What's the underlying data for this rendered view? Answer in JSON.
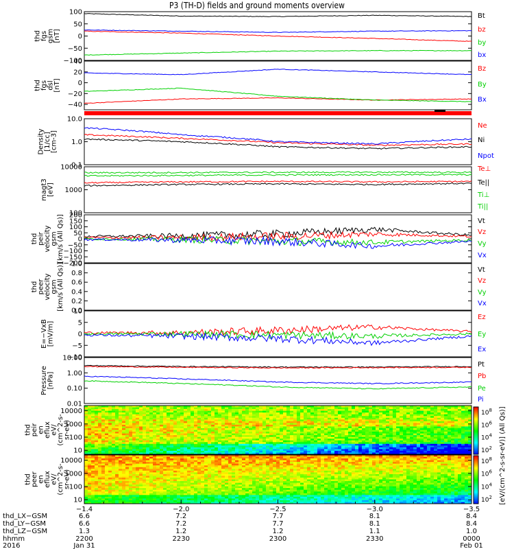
{
  "title": "P3 (TH-D) fields and ground moments overview",
  "colors": {
    "black": "#000000",
    "red": "#ff0000",
    "green": "#00d000",
    "blue": "#0000ff"
  },
  "panels": [
    {
      "id": "fgs_gsm",
      "type": "line",
      "ylabel_lines": [
        "thd",
        "fgs",
        "gsm",
        "[nT]"
      ],
      "yticks": [
        {
          "v": 100,
          "t": "100"
        },
        {
          "v": 50,
          "t": "50"
        },
        {
          "v": 0,
          "t": "0"
        },
        {
          "v": -50,
          "t": "−50"
        },
        {
          "v": -100,
          "t": "−100"
        }
      ],
      "ylim": [
        -100,
        100
      ],
      "log": false,
      "legend": [
        {
          "text": "Bt",
          "color": "black"
        },
        {
          "text": "bz",
          "color": "red"
        },
        {
          "text": "by",
          "color": "green"
        },
        {
          "text": "bx",
          "color": "blue"
        }
      ]
    },
    {
      "id": "fgs_dsl",
      "type": "line",
      "ylabel_lines": [
        "thd",
        "fgs",
        "dsl",
        "[nT]"
      ],
      "yticks": [
        {
          "v": 40,
          "t": "40"
        },
        {
          "v": 20,
          "t": "20"
        },
        {
          "v": 0,
          "t": "0"
        },
        {
          "v": -20,
          "t": "−20"
        },
        {
          "v": -40,
          "t": "−40"
        }
      ],
      "ylim": [
        -50,
        40
      ],
      "log": false,
      "legend": [
        {
          "text": "Bz",
          "color": "red"
        },
        {
          "text": "By",
          "color": "green"
        },
        {
          "text": "Bx",
          "color": "blue"
        }
      ]
    },
    {
      "id": "density",
      "type": "line",
      "ylabel_lines": [
        "Density",
        "[1/cc]",
        "[cm-3]"
      ],
      "yticks": [
        {
          "v": 10,
          "t": "10.0"
        },
        {
          "v": 1,
          "t": "1.0"
        },
        {
          "v": 0.1,
          "t": "0.1"
        }
      ],
      "ylim": [
        0.1,
        10
      ],
      "log": true,
      "legend": [
        {
          "text": "Ne",
          "color": "red"
        },
        {
          "text": "Ni",
          "color": "black"
        },
        {
          "text": "Npot",
          "color": "blue"
        }
      ]
    },
    {
      "id": "temperature",
      "type": "line",
      "ylabel_lines": [
        "magt3",
        "[eV]"
      ],
      "yticks": [
        {
          "v": 10000,
          "t": "10000"
        },
        {
          "v": 1000,
          "t": "1000"
        },
        {
          "v": 100,
          "t": "100"
        }
      ],
      "ylim": [
        100,
        10000
      ],
      "log": true,
      "legend": [
        {
          "text": "Te⊥",
          "color": "red"
        },
        {
          "text": "Te||",
          "color": "black"
        },
        {
          "text": "Ti⊥",
          "color": "green"
        },
        {
          "text": "Ti||",
          "color": "green"
        }
      ]
    },
    {
      "id": "ion_velocity",
      "type": "line",
      "ylabel_lines": [
        "thd",
        "peir",
        "velocity",
        "gsm",
        "[km/s (All Qs)]"
      ],
      "yticks": [
        {
          "v": 200,
          "t": "200"
        },
        {
          "v": 150,
          "t": "150"
        },
        {
          "v": 100,
          "t": "100"
        },
        {
          "v": 50,
          "t": "50"
        },
        {
          "v": 0,
          "t": "0"
        },
        {
          "v": -50,
          "t": "−50"
        },
        {
          "v": -100,
          "t": "−100"
        },
        {
          "v": -150,
          "t": "−150"
        },
        {
          "v": -200,
          "t": "−200"
        }
      ],
      "ylim": [
        -200,
        200
      ],
      "log": false,
      "legend": [
        {
          "text": "Vt",
          "color": "black"
        },
        {
          "text": "Vz",
          "color": "red"
        },
        {
          "text": "Vy",
          "color": "green"
        },
        {
          "text": "Vx",
          "color": "blue"
        }
      ]
    },
    {
      "id": "electron_velocity",
      "type": "line",
      "ylabel_lines": [
        "thd",
        "peer",
        "velocity",
        "gsm",
        "[km/s (All Qs)]"
      ],
      "yticks": [
        {
          "v": 1.0,
          "t": "1.0"
        },
        {
          "v": 0.8,
          "t": "0.8"
        },
        {
          "v": 0.6,
          "t": "0.6"
        },
        {
          "v": 0.4,
          "t": "0.4"
        },
        {
          "v": 0.2,
          "t": "0.2"
        },
        {
          "v": 0.0,
          "t": "0.0"
        }
      ],
      "ylim": [
        0,
        1
      ],
      "log": false,
      "legend": [
        {
          "text": "Vt",
          "color": "black"
        },
        {
          "text": "Vz",
          "color": "red"
        },
        {
          "text": "Vy",
          "color": "green"
        },
        {
          "text": "Vx",
          "color": "blue"
        }
      ]
    },
    {
      "id": "efield",
      "type": "line",
      "ylabel_lines": [
        "E=−VxB",
        "[mV/m]"
      ],
      "yticks": [
        {
          "v": 10,
          "t": "10"
        },
        {
          "v": 5,
          "t": "5"
        },
        {
          "v": 0,
          "t": "0"
        },
        {
          "v": -5,
          "t": "−5"
        },
        {
          "v": -10,
          "t": "−10"
        }
      ],
      "ylim": [
        -10,
        10
      ],
      "log": false,
      "legend": [
        {
          "text": "Ez",
          "color": "red"
        },
        {
          "text": "Ey",
          "color": "green"
        },
        {
          "text": "Ex",
          "color": "blue"
        }
      ]
    },
    {
      "id": "pressure",
      "type": "line",
      "ylabel_lines": [
        "Pressure",
        "[nPa]"
      ],
      "yticks": [
        {
          "v": 10,
          "t": "10.00"
        },
        {
          "v": 1,
          "t": "1.00"
        },
        {
          "v": 0.1,
          "t": "0.10"
        },
        {
          "v": 0.01,
          "t": "0.01"
        }
      ],
      "ylim": [
        0.01,
        10
      ],
      "log": true,
      "legend": [
        {
          "text": "Pt",
          "color": "black"
        },
        {
          "text": "Pb",
          "color": "red"
        },
        {
          "text": "Pe",
          "color": "green"
        },
        {
          "text": "Pi",
          "color": "blue"
        }
      ]
    },
    {
      "id": "ion_eflux",
      "type": "spectrogram",
      "ylabel_lines": [
        "thd",
        "peir",
        "en",
        "eflux",
        "eV/",
        "(cm^2-s-",
        "sr-eV)"
      ],
      "yticks": [
        {
          "v": 10000,
          "t": "10000"
        },
        {
          "v": 1000,
          "t": "1000"
        },
        {
          "v": 100,
          "t": "100"
        },
        {
          "v": 10,
          "t": "10"
        }
      ],
      "ylim": [
        5,
        25000
      ],
      "log": true,
      "legend": []
    },
    {
      "id": "electron_eflux",
      "type": "spectrogram",
      "ylabel_lines": [
        "thd",
        "peer",
        "en",
        "eflux",
        "eV/",
        "(cm^2-s-",
        "sr-eV)"
      ],
      "yticks": [
        {
          "v": 10000,
          "t": "10000"
        },
        {
          "v": 1000,
          "t": "1000"
        },
        {
          "v": 100,
          "t": "100"
        },
        {
          "v": 10,
          "t": "10"
        }
      ],
      "ylim": [
        5,
        25000
      ],
      "log": true,
      "legend": []
    }
  ],
  "colorbar": {
    "label": "[eV/(cm^2-s-sr-eV)] (All Qs)]",
    "label_overlay": "[eV/(cm^2-s-sr-eV)]",
    "ion_ticks": [
      "10^8",
      "10^6",
      "10^4",
      "10^2"
    ],
    "electron_ticks": [
      "10^8",
      "10^6",
      "10^4",
      "10^2"
    ]
  },
  "xaxis": {
    "ticks_x": [
      "−1.4",
      "−2.0",
      "−2.5",
      "−3.0",
      "−3.5"
    ],
    "rows": [
      {
        "label": "thd_LX−GSM",
        "values": [
          "6.6",
          "7.2",
          "7.7",
          "8.1",
          "8.4"
        ]
      },
      {
        "label": "thd_LY−GSM",
        "values": [
          "6.6",
          "7.2",
          "7.7",
          "8.1",
          "8.4"
        ]
      },
      {
        "label": "thd_LZ−GSM",
        "values": [
          "1.3",
          "1.2",
          "1.2",
          "1.1",
          "1.0"
        ]
      },
      {
        "label": "hhmm",
        "values": [
          "2200",
          "2230",
          "2300",
          "2330",
          "0000"
        ]
      },
      {
        "label": "2016",
        "values": [
          "Jan 31",
          "",
          "",
          "",
          "Feb 01"
        ]
      }
    ]
  },
  "chart_data": [
    {
      "type": "line",
      "id": "fgs_gsm",
      "x": [
        "2200",
        "2230",
        "2300",
        "2330",
        "0000"
      ],
      "series": [
        {
          "name": "Bt",
          "values": [
            92,
            82,
            80,
            85,
            80
          ]
        },
        {
          "name": "bz",
          "values": [
            20,
            12,
            0,
            -10,
            -22
          ]
        },
        {
          "name": "by",
          "values": [
            -78,
            -70,
            -62,
            -60,
            -60
          ]
        },
        {
          "name": "bx",
          "values": [
            25,
            20,
            15,
            20,
            22
          ]
        }
      ],
      "ylim": [
        -100,
        100
      ]
    },
    {
      "type": "line",
      "id": "fgs_dsl",
      "x": [
        "2200",
        "2230",
        "2300",
        "2330",
        "0000"
      ],
      "series": [
        {
          "name": "Bz",
          "values": [
            -38,
            -30,
            -28,
            -32,
            -30
          ]
        },
        {
          "name": "By",
          "values": [
            -16,
            -10,
            -25,
            -32,
            -35
          ]
        },
        {
          "name": "Bx",
          "values": [
            18,
            15,
            25,
            20,
            15
          ]
        }
      ],
      "ylim": [
        -50,
        40
      ]
    },
    {
      "type": "line",
      "id": "density",
      "x": [
        "2200",
        "2230",
        "2300",
        "2330",
        "0000"
      ],
      "series": [
        {
          "name": "Ne",
          "values": [
            2.0,
            1.4,
            0.9,
            0.7,
            0.8
          ]
        },
        {
          "name": "Ni",
          "values": [
            1.3,
            1.0,
            0.6,
            0.5,
            0.6
          ]
        },
        {
          "name": "Npot",
          "values": [
            4.0,
            2.0,
            1.0,
            0.8,
            1.3
          ]
        }
      ],
      "ylim": [
        0.1,
        10
      ],
      "scale": "log"
    },
    {
      "type": "line",
      "id": "temperature",
      "x": [
        "2200",
        "2230",
        "2300",
        "2330",
        "0000"
      ],
      "series": [
        {
          "name": "Te⊥",
          "values": [
            2000,
            2200,
            2300,
            2200,
            2300
          ]
        },
        {
          "name": "Te||",
          "values": [
            1500,
            1700,
            1800,
            1700,
            1900
          ]
        },
        {
          "name": "Ti⊥",
          "values": [
            4000,
            4200,
            4400,
            4500,
            4500
          ]
        },
        {
          "name": "Ti||",
          "values": [
            5500,
            5600,
            5700,
            5800,
            5700
          ]
        }
      ],
      "ylim": [
        100,
        10000
      ],
      "scale": "log"
    },
    {
      "type": "line",
      "id": "ion_velocity",
      "x": [
        "2200",
        "2230",
        "2300",
        "2330",
        "0000"
      ],
      "series": [
        {
          "name": "Vt",
          "values": [
            20,
            25,
            40,
            80,
            30
          ]
        },
        {
          "name": "Vz",
          "values": [
            10,
            10,
            20,
            40,
            20
          ]
        },
        {
          "name": "Vy",
          "values": [
            0,
            -5,
            -20,
            -30,
            -10
          ]
        },
        {
          "name": "Vx",
          "values": [
            -5,
            -10,
            -20,
            -60,
            -20
          ]
        }
      ],
      "ylim": [
        -200,
        200
      ]
    },
    {
      "type": "line",
      "id": "electron_velocity",
      "x": [],
      "series": [],
      "ylim": [
        0,
        1
      ]
    },
    {
      "type": "line",
      "id": "efield",
      "x": [
        "2200",
        "2230",
        "2300",
        "2330",
        "0000"
      ],
      "series": [
        {
          "name": "Ez",
          "values": [
            0.5,
            0.5,
            1.5,
            3,
            1
          ]
        },
        {
          "name": "Ey",
          "values": [
            0,
            0,
            -0.5,
            -1,
            0
          ]
        },
        {
          "name": "Ex",
          "values": [
            -0.5,
            -1,
            -2,
            -4,
            -1
          ]
        }
      ],
      "ylim": [
        -10,
        10
      ]
    },
    {
      "type": "line",
      "id": "pressure",
      "x": [
        "2200",
        "2230",
        "2300",
        "2330",
        "0000"
      ],
      "series": [
        {
          "name": "Pt",
          "values": [
            3.0,
            2.6,
            2.4,
            2.4,
            2.6
          ]
        },
        {
          "name": "Pb",
          "values": [
            2.6,
            2.3,
            2.1,
            2.2,
            2.3
          ]
        },
        {
          "name": "Pe",
          "values": [
            0.3,
            0.2,
            0.12,
            0.09,
            0.12
          ]
        },
        {
          "name": "Pi",
          "values": [
            0.6,
            0.4,
            0.25,
            0.2,
            0.25
          ]
        }
      ],
      "ylim": [
        0.01,
        10
      ],
      "scale": "log"
    }
  ]
}
